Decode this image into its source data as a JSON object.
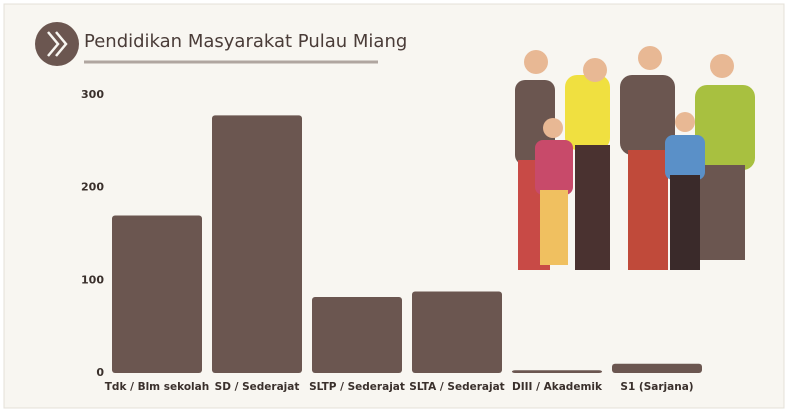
{
  "chart_data": {
    "type": "bar",
    "title": "Pendidikan Masyarakat Pulau Miang",
    "categories": [
      "Tdk / Blm sekolah",
      "SD / Sederajat",
      "SLTP / Sederajat",
      "SLTA / Sederajat",
      "DIII / Akademik",
      "S1 (Sarjana)"
    ],
    "values": [
      170,
      278,
      82,
      88,
      3,
      10
    ],
    "color": "#6b5650",
    "ylim": [
      0,
      300
    ],
    "yticks": [
      0,
      100,
      200,
      300
    ],
    "grid": false
  }
}
